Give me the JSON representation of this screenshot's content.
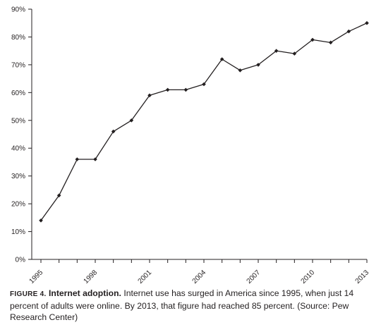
{
  "chart_data": {
    "type": "line",
    "title": "",
    "xlabel": "",
    "ylabel": "",
    "x": [
      1995,
      1996,
      1997,
      1998,
      1999,
      2000,
      2001,
      2002,
      2003,
      2004,
      2005,
      2006,
      2007,
      2008,
      2009,
      2010,
      2011,
      2012,
      2013
    ],
    "values": [
      14,
      23,
      36,
      36,
      46,
      50,
      59,
      61,
      61,
      63,
      72,
      68,
      70,
      75,
      74,
      79,
      78,
      82,
      85
    ],
    "y_unit": "%",
    "ylim": [
      0,
      90
    ],
    "yticks": [
      "0%",
      "10%",
      "20%",
      "30%",
      "40%",
      "50%",
      "60%",
      "70%",
      "80%",
      "90%"
    ],
    "xtick_labels": [
      "1995",
      "1998",
      "2001",
      "2004",
      "2007",
      "2010",
      "2013"
    ],
    "xtick_label_values": [
      1995,
      1998,
      2001,
      2004,
      2007,
      2010,
      2013
    ],
    "grid": false,
    "legend": "none",
    "colors": {
      "line": "#231f20",
      "axis": "#231f20"
    }
  },
  "caption": {
    "label": "FIGURE 4.",
    "title": "Internet adoption.",
    "text": "Internet use has surged in America since 1995, when just 14 percent of adults were online. By 2013, that figure had reached 85 percent. (Source: Pew Research Center)"
  }
}
